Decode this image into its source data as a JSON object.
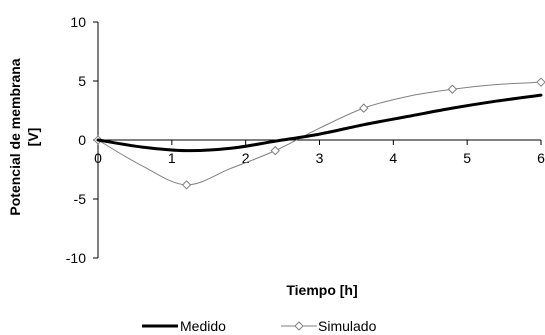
{
  "chart_data": {
    "type": "line",
    "xlabel": "Tiempo [h]",
    "ylabel_line1": "Potencial de membrana",
    "ylabel_line2": "[V]",
    "xlim": [
      0,
      6
    ],
    "ylim": [
      -10,
      10
    ],
    "x_ticks": [
      "0",
      "1",
      "2",
      "3",
      "4",
      "5",
      "6"
    ],
    "y_ticks": [
      "10",
      "5",
      "0",
      "-5",
      "-10"
    ],
    "grid": false,
    "legend_position": "bottom",
    "series": [
      {
        "name": "Medido",
        "color": "#000000",
        "marker": "none",
        "x": [
          0,
          0.6,
          1.2,
          1.8,
          2.4,
          3.0,
          3.6,
          4.2,
          4.8,
          5.4,
          6.0
        ],
        "y": [
          0,
          -0.6,
          -0.9,
          -0.7,
          -0.1,
          0.5,
          1.3,
          2.0,
          2.7,
          3.3,
          3.8
        ]
      },
      {
        "name": "Simulado",
        "color": "#808080",
        "marker": "diamond",
        "x": [
          0,
          0.6,
          1.2,
          1.8,
          2.4,
          3.0,
          3.6,
          4.2,
          4.8,
          5.4,
          6.0
        ],
        "y": [
          0,
          -2.2,
          -3.8,
          -2.4,
          -0.9,
          1.0,
          2.7,
          3.7,
          4.3,
          4.7,
          4.9
        ],
        "marker_indices": [
          0,
          2,
          4,
          6,
          8,
          10
        ]
      }
    ]
  }
}
